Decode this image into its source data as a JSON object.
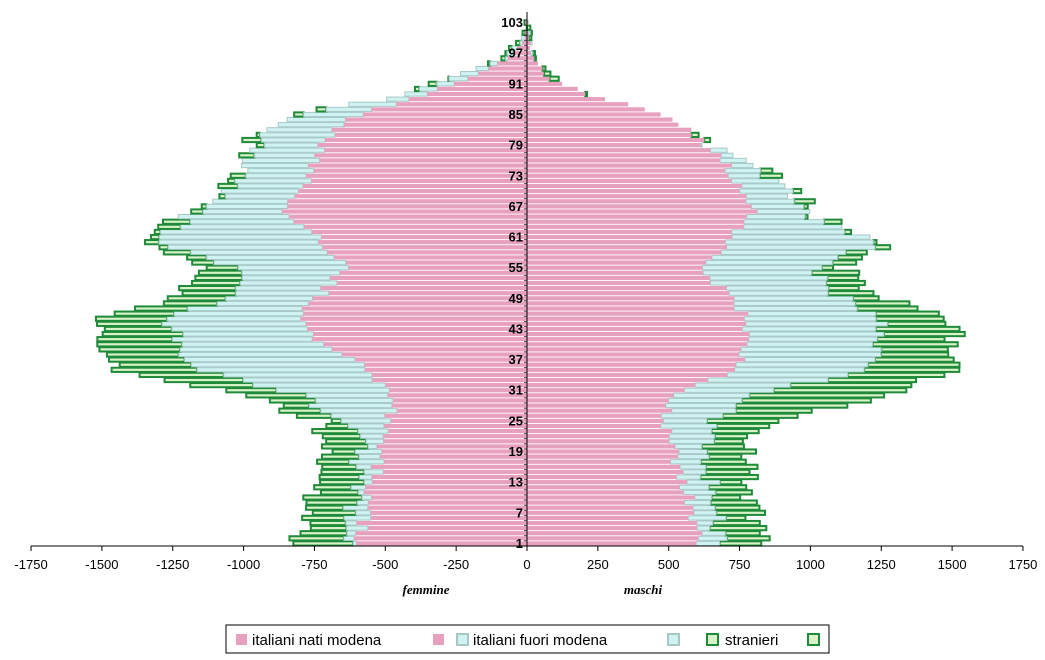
{
  "colors": {
    "italiani_nati_modena": "#E8A0BF",
    "italiani_fuori_modena_fill": "#CFF3F2",
    "italiani_fuori_modena_stroke": "#A8C8C6",
    "stranieri_fill": "#D8F3C8",
    "stranieri_stroke": "#1F8A3A"
  },
  "chart_data": {
    "type": "bar",
    "orientation": "horizontal",
    "stacked": true,
    "x_axis": {
      "ticks": [
        -1750,
        -1500,
        -1250,
        -1000,
        -750,
        -500,
        -250,
        0,
        250,
        500,
        750,
        1000,
        1250,
        1500,
        1750
      ],
      "tick_labels": [
        "-1750",
        "-1500",
        "-1250",
        "-1000",
        "-750",
        "-500",
        "-250",
        "0",
        "250",
        "500",
        "750",
        "1000",
        "1250",
        "1500",
        "1750"
      ],
      "range": [
        -1750,
        1750
      ]
    },
    "y_axis": {
      "age_min": 1,
      "age_max": 103,
      "tick_labels": [
        "1",
        "7",
        "13",
        "19",
        "25",
        "31",
        "37",
        "43",
        "49",
        "55",
        "61",
        "67",
        "73",
        "79",
        "85",
        "91",
        "97",
        "103"
      ]
    },
    "side_labels": {
      "left": "femmine",
      "right": "maschi"
    },
    "series": [
      {
        "name": "italiani nati modena",
        "key": "nati"
      },
      {
        "name": "italiani fuori modena",
        "key": "fuori"
      },
      {
        "name": "stranieri",
        "key": "stranieri"
      }
    ],
    "anchors": {
      "female": {
        "ages": [
          1,
          5,
          10,
          15,
          20,
          25,
          30,
          35,
          40,
          45,
          50,
          55,
          60,
          65,
          70,
          75,
          80,
          85,
          88,
          92,
          96,
          100,
          103
        ],
        "nati": [
          590,
          580,
          560,
          530,
          510,
          480,
          470,
          560,
          730,
          820,
          720,
          640,
          720,
          850,
          800,
          760,
          720,
          590,
          420,
          210,
          60,
          10,
          0
        ],
        "total_italians": [
          640,
          620,
          610,
          600,
          590,
          640,
          800,
          1150,
          1230,
          1270,
          1030,
          1020,
          1300,
          1200,
          1050,
          990,
          950,
          800,
          500,
          270,
          85,
          18,
          0
        ],
        "total": [
          800,
          790,
          780,
          740,
          720,
          730,
          1000,
          1450,
          1480,
          1500,
          1200,
          1130,
          1320,
          1230,
          1080,
          1010,
          970,
          810,
          520,
          280,
          90,
          20,
          0
        ]
      },
      "male": {
        "ages": [
          1,
          5,
          10,
          15,
          20,
          25,
          30,
          35,
          40,
          45,
          50,
          55,
          60,
          65,
          70,
          75,
          80,
          85,
          88,
          92,
          96,
          100,
          103
        ],
        "nati": [
          600,
          590,
          570,
          540,
          510,
          490,
          530,
          720,
          780,
          780,
          700,
          610,
          700,
          800,
          760,
          700,
          610,
          480,
          280,
          80,
          20,
          5,
          0
        ],
        "total_italians": [
          680,
          670,
          660,
          640,
          650,
          660,
          780,
          1200,
          1250,
          1250,
          1090,
          1020,
          1240,
          1000,
          920,
          800,
          600,
          390,
          200,
          70,
          20,
          5,
          0
        ],
        "total": [
          850,
          820,
          790,
          780,
          760,
          890,
          1250,
          1500,
          1520,
          1500,
          1200,
          1120,
          1270,
          1020,
          940,
          810,
          610,
          400,
          210,
          110,
          30,
          8,
          0
        ]
      }
    }
  },
  "legend": {
    "items": [
      {
        "label": "italiani nati modena"
      },
      {
        "label": "italiani fuori modena"
      },
      {
        "label": "stranieri"
      }
    ]
  }
}
